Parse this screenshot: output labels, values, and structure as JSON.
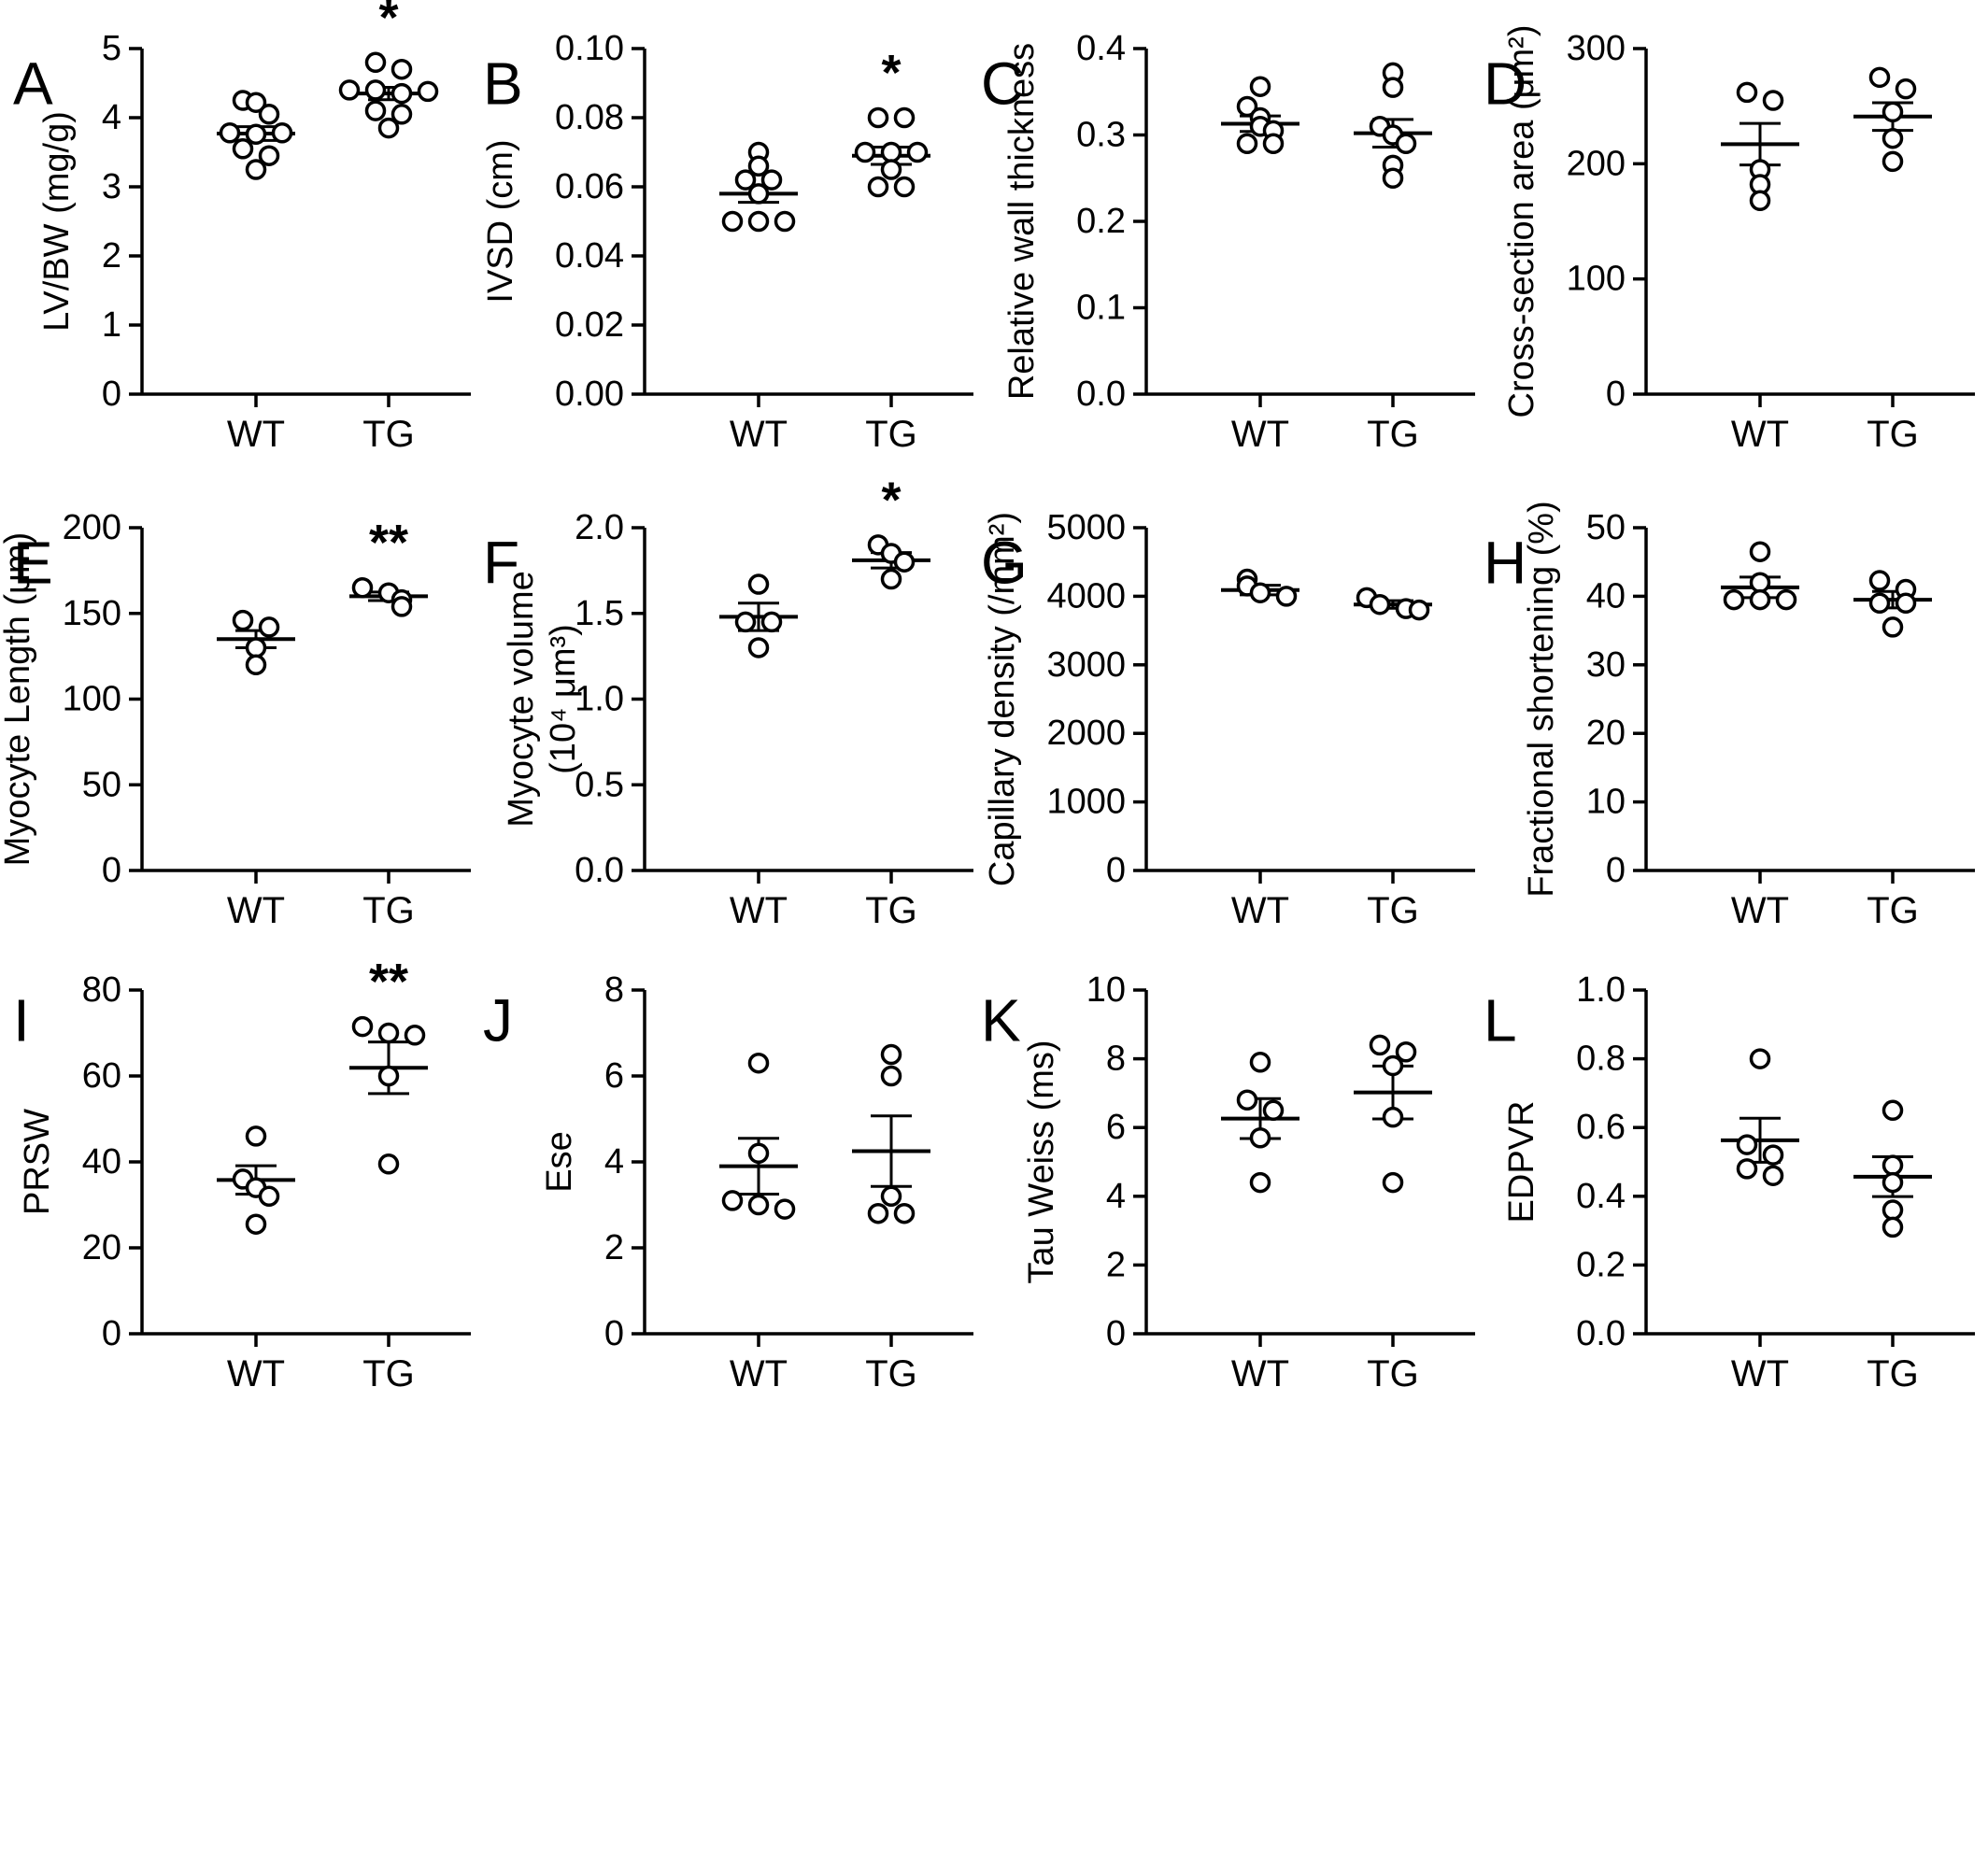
{
  "colors": {
    "ink": "#000000",
    "background": "#ffffff",
    "marker_fill": "#ffffff"
  },
  "chart_data": [
    {
      "panel": "A",
      "type": "scatter",
      "ylabel": "LV/BW (mg/g)",
      "ylim": [
        0,
        5
      ],
      "yticks": [
        "0",
        "1",
        "2",
        "3",
        "4",
        "5"
      ],
      "categories": [
        "WT",
        "TG"
      ],
      "groups": [
        {
          "name": "WT",
          "values": [
            4.25,
            4.22,
            4.05,
            3.78,
            3.76,
            3.78,
            3.55,
            3.45,
            3.25
          ],
          "mean": 3.77,
          "sem": 0.1
        },
        {
          "name": "TG",
          "values": [
            4.8,
            4.7,
            4.4,
            4.4,
            4.35,
            4.38,
            4.1,
            4.05,
            3.85
          ],
          "mean": 4.35,
          "sem": 0.09
        }
      ],
      "significance": [
        {
          "group": "TG",
          "label": "*"
        }
      ]
    },
    {
      "panel": "B",
      "type": "scatter",
      "ylabel": "IVSD (cm)",
      "ylim": [
        0,
        0.1
      ],
      "yticks": [
        "0.00",
        "0.02",
        "0.04",
        "0.06",
        "0.08",
        "0.10"
      ],
      "categories": [
        "WT",
        "TG"
      ],
      "groups": [
        {
          "name": "WT",
          "values": [
            0.07,
            0.066,
            0.062,
            0.062,
            0.058,
            0.05,
            0.05,
            0.05
          ],
          "mean": 0.058,
          "sem": 0.0025
        },
        {
          "name": "TG",
          "values": [
            0.08,
            0.08,
            0.07,
            0.07,
            0.07,
            0.065,
            0.06,
            0.06
          ],
          "mean": 0.069,
          "sem": 0.0025
        }
      ],
      "significance": [
        {
          "group": "TG",
          "label": "*"
        }
      ]
    },
    {
      "panel": "C",
      "type": "scatter",
      "ylabel": "Relative wall thickness",
      "ylim": [
        0,
        0.4
      ],
      "yticks": [
        "0.0",
        "0.1",
        "0.2",
        "0.3",
        "0.4"
      ],
      "categories": [
        "WT",
        "TG"
      ],
      "groups": [
        {
          "name": "WT",
          "values": [
            0.356,
            0.333,
            0.32,
            0.31,
            0.305,
            0.29,
            0.29
          ],
          "mean": 0.313,
          "sem": 0.009
        },
        {
          "name": "TG",
          "values": [
            0.372,
            0.355,
            0.31,
            0.3,
            0.29,
            0.265,
            0.25
          ],
          "mean": 0.302,
          "sem": 0.016
        }
      ],
      "significance": []
    },
    {
      "panel": "D",
      "type": "scatter",
      "ylabel": "Cross-section area (μm²)",
      "ylim": [
        0,
        300
      ],
      "yticks": [
        "0",
        "100",
        "200",
        "300"
      ],
      "categories": [
        "WT",
        "TG"
      ],
      "groups": [
        {
          "name": "WT",
          "values": [
            262,
            255,
            195,
            182,
            168
          ],
          "mean": 217,
          "sem": 18
        },
        {
          "name": "TG",
          "values": [
            275,
            265,
            245,
            222,
            202
          ],
          "mean": 241,
          "sem": 12
        }
      ],
      "significance": []
    },
    {
      "panel": "E",
      "type": "scatter",
      "ylabel": "Myocyte Length (μm)",
      "ylim": [
        0,
        200
      ],
      "yticks": [
        "0",
        "50",
        "100",
        "150",
        "200"
      ],
      "categories": [
        "WT",
        "TG"
      ],
      "groups": [
        {
          "name": "WT",
          "values": [
            146,
            142,
            130,
            120
          ],
          "mean": 135,
          "sem": 5
        },
        {
          "name": "TG",
          "values": [
            165,
            162,
            158,
            154
          ],
          "mean": 160,
          "sem": 2.5
        }
      ],
      "significance": [
        {
          "group": "TG",
          "label": "**"
        }
      ]
    },
    {
      "panel": "F",
      "type": "scatter",
      "ylabel": "Myocyte volume",
      "ylabel_line2": "(10⁴ μm³)",
      "ylim": [
        0,
        2
      ],
      "yticks": [
        "0.0",
        "0.5",
        "1.0",
        "1.5",
        "2.0"
      ],
      "categories": [
        "WT",
        "TG"
      ],
      "groups": [
        {
          "name": "WT",
          "values": [
            1.67,
            1.45,
            1.45,
            1.3
          ],
          "mean": 1.48,
          "sem": 0.08
        },
        {
          "name": "TG",
          "values": [
            1.9,
            1.85,
            1.8,
            1.7
          ],
          "mean": 1.81,
          "sem": 0.045
        }
      ],
      "significance": [
        {
          "group": "TG",
          "label": "*"
        }
      ]
    },
    {
      "panel": "G",
      "type": "scatter",
      "ylabel": "Capillary density (/mm²)",
      "ylim": [
        0,
        5000
      ],
      "yticks": [
        "0",
        "1000",
        "2000",
        "3000",
        "4000",
        "5000"
      ],
      "categories": [
        "WT",
        "TG"
      ],
      "groups": [
        {
          "name": "WT",
          "values": [
            4250,
            4150,
            4050,
            4000
          ],
          "mean": 4090,
          "sem": 70
        },
        {
          "name": "TG",
          "values": [
            3980,
            3880,
            3820,
            3800
          ],
          "mean": 3880,
          "sem": 55
        }
      ],
      "significance": []
    },
    {
      "panel": "H",
      "type": "scatter",
      "ylabel": "Fractional shortening (%)",
      "ylim": [
        0,
        50
      ],
      "yticks": [
        "0",
        "10",
        "20",
        "30",
        "40",
        "50"
      ],
      "categories": [
        "WT",
        "TG"
      ],
      "groups": [
        {
          "name": "WT",
          "values": [
            46.5,
            42.0,
            39.5,
            39.5,
            39.5
          ],
          "mean": 41.3,
          "sem": 1.5
        },
        {
          "name": "TG",
          "values": [
            42.3,
            41.0,
            39.0,
            39.0,
            35.5
          ],
          "mean": 39.5,
          "sem": 1.2
        }
      ],
      "significance": []
    },
    {
      "panel": "I",
      "type": "scatter",
      "ylabel": "PRSW",
      "ylim": [
        0,
        80
      ],
      "yticks": [
        "0",
        "20",
        "40",
        "60",
        "80"
      ],
      "categories": [
        "WT",
        "TG"
      ],
      "groups": [
        {
          "name": "WT",
          "values": [
            46.0,
            36.0,
            34.0,
            32.0,
            25.5
          ],
          "mean": 35.8,
          "sem": 3.3
        },
        {
          "name": "TG",
          "values": [
            71.5,
            70.0,
            69.5,
            60.0,
            39.5
          ],
          "mean": 61.9,
          "sem": 6.0
        }
      ],
      "significance": [
        {
          "group": "TG",
          "label": "**"
        }
      ]
    },
    {
      "panel": "J",
      "type": "scatter",
      "ylabel": "Ese",
      "ylim": [
        0,
        8
      ],
      "yticks": [
        "0",
        "2",
        "4",
        "6",
        "8"
      ],
      "categories": [
        "WT",
        "TG"
      ],
      "groups": [
        {
          "name": "WT",
          "values": [
            6.3,
            4.2,
            3.1,
            3.0,
            2.9
          ],
          "mean": 3.9,
          "sem": 0.65
        },
        {
          "name": "TG",
          "values": [
            6.5,
            6.0,
            3.2,
            2.8,
            2.8
          ],
          "mean": 4.25,
          "sem": 0.82
        }
      ],
      "significance": []
    },
    {
      "panel": "K",
      "type": "scatter",
      "ylabel": "Tau Weiss (ms)",
      "ylim": [
        0,
        10
      ],
      "yticks": [
        "0",
        "2",
        "4",
        "6",
        "8",
        "10"
      ],
      "categories": [
        "WT",
        "TG"
      ],
      "groups": [
        {
          "name": "WT",
          "values": [
            7.9,
            6.8,
            6.5,
            5.7,
            4.4
          ],
          "mean": 6.26,
          "sem": 0.58
        },
        {
          "name": "TG",
          "values": [
            8.4,
            8.2,
            7.8,
            6.3,
            4.4
          ],
          "mean": 7.02,
          "sem": 0.77
        }
      ],
      "significance": []
    },
    {
      "panel": "L",
      "type": "scatter",
      "ylabel": "EDPVR",
      "ylim": [
        0,
        1
      ],
      "yticks": [
        "0.0",
        "0.2",
        "0.4",
        "0.6",
        "0.8",
        "1.0"
      ],
      "categories": [
        "WT",
        "TG"
      ],
      "groups": [
        {
          "name": "WT",
          "values": [
            0.8,
            0.55,
            0.52,
            0.48,
            0.46
          ],
          "mean": 0.563,
          "sem": 0.064
        },
        {
          "name": "TG",
          "values": [
            0.65,
            0.49,
            0.44,
            0.36,
            0.31
          ],
          "mean": 0.457,
          "sem": 0.058
        }
      ],
      "significance": []
    }
  ]
}
